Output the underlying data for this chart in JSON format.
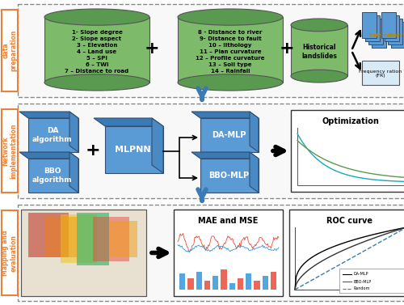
{
  "background": "#ffffff",
  "cyl_color": "#7dba6a",
  "cyl_top": "#5a9a50",
  "cyl_body_light": "#8ec87e",
  "cube_front": "#5b9bd5",
  "cube_top": "#3a7ab5",
  "cube_right": "#4a8ac4",
  "label_color": "#e8823a",
  "arrow_blue": "#3a7ab5",
  "cylinder1_text": "1- Slope degree\n2- Slope aspect\n3 – Elevation\n4 – Land use\n5 – SPI\n6 – TWI\n7 – Distance to road",
  "cylinder2_text": "8 - Distance to river\n9- Distance to fault\n10 – lithology\n11 – Plan curvature\n12 – Profile curvature\n13 – Soil type\n14 – Rainfall",
  "cylinder3_text": "Historical\nlandslides",
  "row_labels": [
    "data\npreparation",
    "Network\nimplementation",
    "Mapping and\nevaluation"
  ]
}
